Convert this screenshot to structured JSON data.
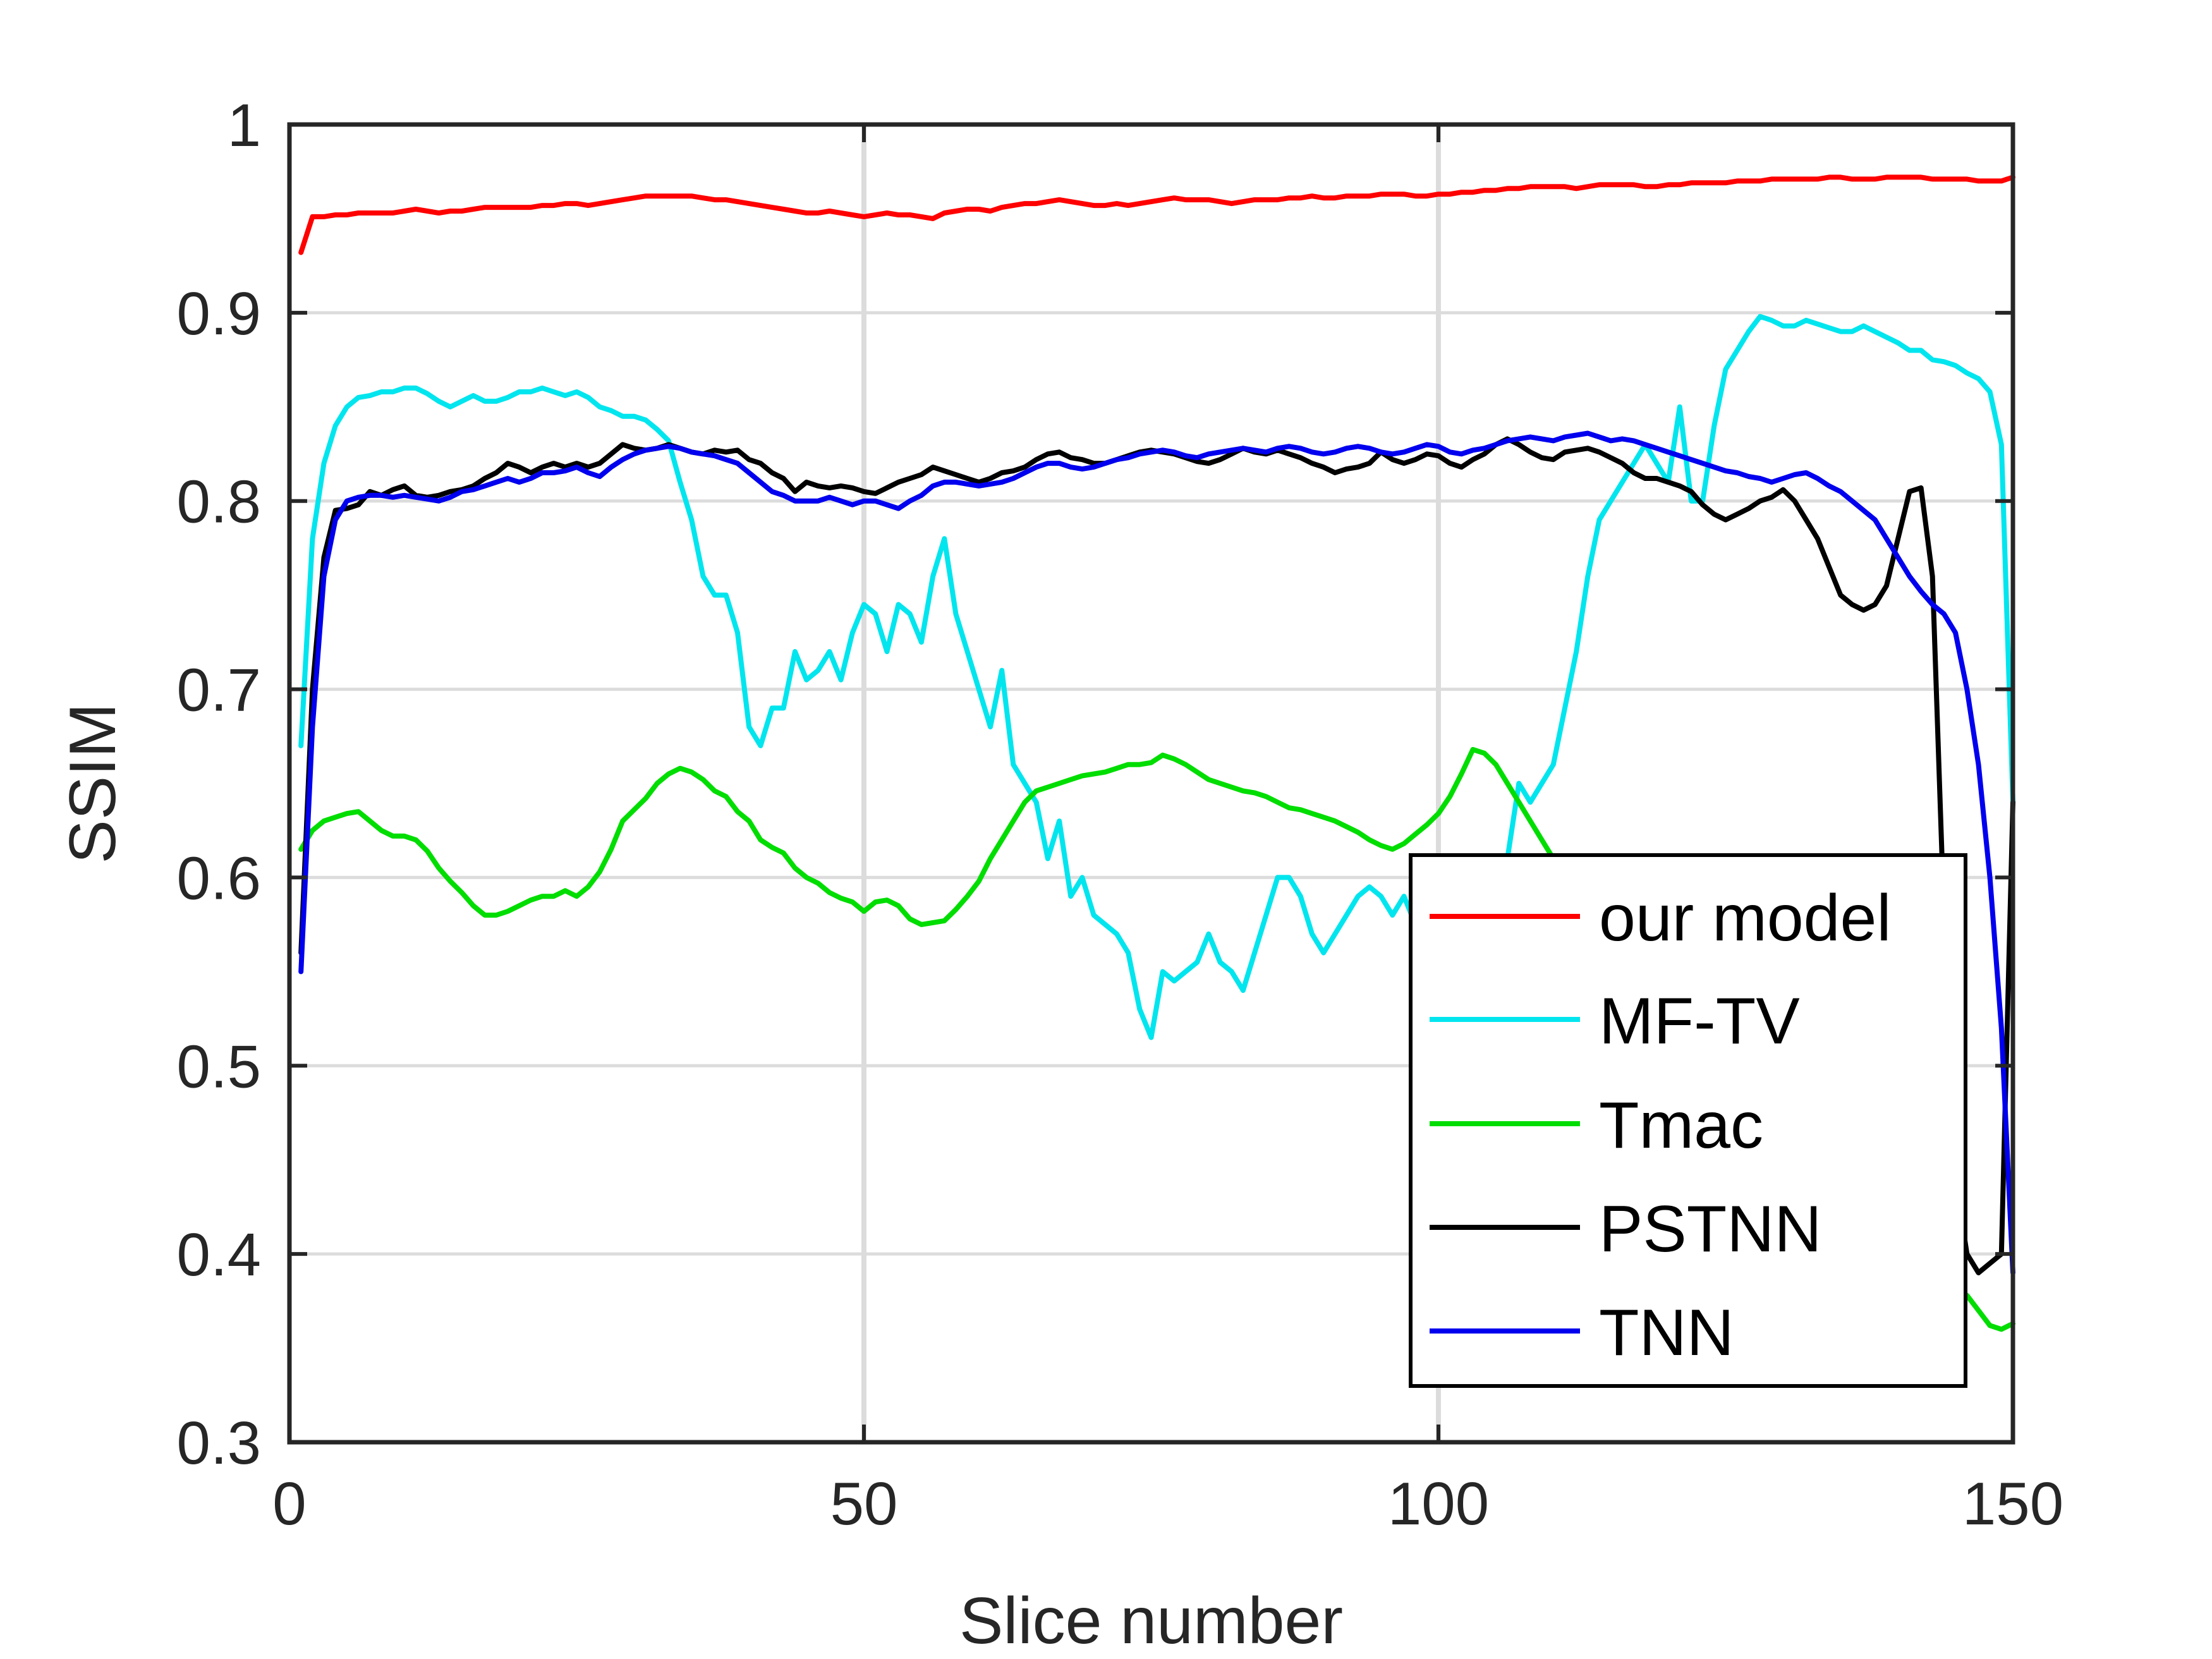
{
  "chart_data": {
    "type": "line",
    "title": "",
    "xlabel": "Slice number",
    "ylabel": "SSIM",
    "xlim": [
      0,
      150
    ],
    "ylim": [
      0.3,
      1.0
    ],
    "xticks": [
      0,
      50,
      100,
      150
    ],
    "xtick_labels": [
      "0",
      "50",
      "100",
      "150"
    ],
    "yticks": [
      0.3,
      0.4,
      0.5,
      0.6,
      0.7,
      0.8,
      0.9,
      1.0
    ],
    "ytick_labels": [
      "0.3",
      "0.4",
      "0.5",
      "0.6",
      "0.7",
      "0.8",
      "0.9",
      "1"
    ],
    "grid": true,
    "legend_position": "bottom-right",
    "x": [
      1,
      2,
      3,
      4,
      5,
      6,
      7,
      8,
      9,
      10,
      11,
      12,
      13,
      14,
      15,
      16,
      17,
      18,
      19,
      20,
      21,
      22,
      23,
      24,
      25,
      26,
      27,
      28,
      29,
      30,
      31,
      32,
      33,
      34,
      35,
      36,
      37,
      38,
      39,
      40,
      41,
      42,
      43,
      44,
      45,
      46,
      47,
      48,
      49,
      50,
      51,
      52,
      53,
      54,
      55,
      56,
      57,
      58,
      59,
      60,
      61,
      62,
      63,
      64,
      65,
      66,
      67,
      68,
      69,
      70,
      71,
      72,
      73,
      74,
      75,
      76,
      77,
      78,
      79,
      80,
      81,
      82,
      83,
      84,
      85,
      86,
      87,
      88,
      89,
      90,
      91,
      92,
      93,
      94,
      95,
      96,
      97,
      98,
      99,
      100,
      101,
      102,
      103,
      104,
      105,
      106,
      107,
      108,
      109,
      110,
      111,
      112,
      113,
      114,
      115,
      116,
      117,
      118,
      119,
      120,
      121,
      122,
      123,
      124,
      125,
      126,
      127,
      128,
      129,
      130,
      131,
      132,
      133,
      134,
      135,
      136,
      137,
      138,
      139,
      140,
      141,
      142,
      143,
      144,
      145,
      146,
      147,
      148,
      149,
      150
    ],
    "series": [
      {
        "name": "our model",
        "color": "#ff0000",
        "values": [
          0.932,
          0.951,
          0.951,
          0.952,
          0.952,
          0.953,
          0.953,
          0.953,
          0.953,
          0.954,
          0.955,
          0.954,
          0.953,
          0.954,
          0.954,
          0.955,
          0.956,
          0.956,
          0.956,
          0.956,
          0.956,
          0.957,
          0.957,
          0.958,
          0.958,
          0.957,
          0.958,
          0.959,
          0.96,
          0.961,
          0.962,
          0.962,
          0.962,
          0.962,
          0.962,
          0.961,
          0.96,
          0.96,
          0.959,
          0.958,
          0.957,
          0.956,
          0.955,
          0.954,
          0.953,
          0.953,
          0.954,
          0.953,
          0.952,
          0.951,
          0.952,
          0.953,
          0.952,
          0.952,
          0.951,
          0.95,
          0.953,
          0.954,
          0.955,
          0.955,
          0.954,
          0.956,
          0.957,
          0.958,
          0.958,
          0.959,
          0.96,
          0.959,
          0.958,
          0.957,
          0.957,
          0.958,
          0.957,
          0.958,
          0.959,
          0.96,
          0.961,
          0.96,
          0.96,
          0.96,
          0.959,
          0.958,
          0.959,
          0.96,
          0.96,
          0.96,
          0.961,
          0.961,
          0.962,
          0.961,
          0.961,
          0.962,
          0.962,
          0.962,
          0.963,
          0.963,
          0.963,
          0.962,
          0.962,
          0.963,
          0.963,
          0.964,
          0.964,
          0.965,
          0.965,
          0.966,
          0.966,
          0.967,
          0.967,
          0.967,
          0.967,
          0.966,
          0.967,
          0.968,
          0.968,
          0.968,
          0.968,
          0.967,
          0.967,
          0.968,
          0.968,
          0.969,
          0.969,
          0.969,
          0.969,
          0.97,
          0.97,
          0.97,
          0.971,
          0.971,
          0.971,
          0.971,
          0.971,
          0.972,
          0.972,
          0.971,
          0.971,
          0.971,
          0.972,
          0.972,
          0.972,
          0.972,
          0.971,
          0.971,
          0.971,
          0.971,
          0.97,
          0.97,
          0.97,
          0.972
        ]
      },
      {
        "name": "MF-TV",
        "color": "#00e5ee",
        "values": [
          0.67,
          0.78,
          0.82,
          0.84,
          0.85,
          0.855,
          0.856,
          0.858,
          0.858,
          0.86,
          0.86,
          0.857,
          0.853,
          0.85,
          0.853,
          0.856,
          0.853,
          0.853,
          0.855,
          0.858,
          0.858,
          0.86,
          0.858,
          0.856,
          0.858,
          0.855,
          0.85,
          0.848,
          0.845,
          0.845,
          0.843,
          0.838,
          0.832,
          0.81,
          0.79,
          0.76,
          0.75,
          0.75,
          0.73,
          0.68,
          0.67,
          0.69,
          0.69,
          0.72,
          0.705,
          0.71,
          0.72,
          0.705,
          0.73,
          0.745,
          0.74,
          0.72,
          0.745,
          0.74,
          0.725,
          0.76,
          0.78,
          0.74,
          0.72,
          0.7,
          0.68,
          0.71,
          0.66,
          0.65,
          0.64,
          0.61,
          0.63,
          0.59,
          0.6,
          0.58,
          0.575,
          0.57,
          0.56,
          0.53,
          0.515,
          0.55,
          0.545,
          0.55,
          0.555,
          0.57,
          0.555,
          0.55,
          0.54,
          0.56,
          0.58,
          0.6,
          0.6,
          0.59,
          0.57,
          0.56,
          0.57,
          0.58,
          0.59,
          0.595,
          0.59,
          0.58,
          0.59,
          0.575,
          0.57,
          0.58,
          0.56,
          0.58,
          0.59,
          0.58,
          0.6,
          0.61,
          0.65,
          0.64,
          0.65,
          0.66,
          0.69,
          0.72,
          0.76,
          0.79,
          0.8,
          0.81,
          0.82,
          0.83,
          0.82,
          0.81,
          0.85,
          0.8,
          0.8,
          0.84,
          0.87,
          0.88,
          0.89,
          0.898,
          0.896,
          0.893,
          0.893,
          0.896,
          0.894,
          0.892,
          0.89,
          0.89,
          0.893,
          0.89,
          0.887,
          0.884,
          0.88,
          0.88,
          0.875,
          0.874,
          0.872,
          0.868,
          0.865,
          0.858,
          0.83,
          0.64
        ]
      },
      {
        "name": "Tmac",
        "color": "#00dd00",
        "values": [
          0.615,
          0.625,
          0.63,
          0.632,
          0.634,
          0.635,
          0.63,
          0.625,
          0.622,
          0.622,
          0.62,
          0.614,
          0.605,
          0.598,
          0.592,
          0.585,
          0.58,
          0.58,
          0.582,
          0.585,
          0.588,
          0.59,
          0.59,
          0.593,
          0.59,
          0.595,
          0.603,
          0.615,
          0.63,
          0.636,
          0.642,
          0.65,
          0.655,
          0.658,
          0.656,
          0.652,
          0.646,
          0.643,
          0.635,
          0.63,
          0.62,
          0.616,
          0.613,
          0.605,
          0.6,
          0.597,
          0.592,
          0.589,
          0.587,
          0.582,
          0.587,
          0.588,
          0.585,
          0.578,
          0.575,
          0.576,
          0.577,
          0.583,
          0.59,
          0.598,
          0.61,
          0.62,
          0.63,
          0.64,
          0.646,
          0.648,
          0.65,
          0.652,
          0.654,
          0.655,
          0.656,
          0.658,
          0.66,
          0.66,
          0.661,
          0.665,
          0.663,
          0.66,
          0.656,
          0.652,
          0.65,
          0.648,
          0.646,
          0.645,
          0.643,
          0.64,
          0.637,
          0.636,
          0.634,
          0.632,
          0.63,
          0.627,
          0.624,
          0.62,
          0.617,
          0.615,
          0.618,
          0.623,
          0.628,
          0.634,
          0.643,
          0.655,
          0.668,
          0.666,
          0.66,
          0.65,
          0.64,
          0.63,
          0.62,
          0.61,
          0.6,
          0.59,
          0.58,
          0.57,
          0.56,
          0.55,
          0.54,
          0.53,
          0.52,
          0.51,
          0.5,
          0.49,
          0.48,
          0.47,
          0.46,
          0.455,
          0.45,
          0.445,
          0.44,
          0.435,
          0.43,
          0.425,
          0.42,
          0.415,
          0.41,
          0.405,
          0.4,
          0.398,
          0.395,
          0.392,
          0.39,
          0.388,
          0.386,
          0.384,
          0.382,
          0.378,
          0.37,
          0.362,
          0.36,
          0.363
        ]
      },
      {
        "name": "PSTNN",
        "color": "#000000",
        "values": [
          0.56,
          0.7,
          0.77,
          0.795,
          0.796,
          0.798,
          0.805,
          0.803,
          0.806,
          0.808,
          0.803,
          0.802,
          0.803,
          0.805,
          0.806,
          0.808,
          0.812,
          0.815,
          0.82,
          0.818,
          0.815,
          0.818,
          0.82,
          0.818,
          0.82,
          0.818,
          0.82,
          0.825,
          0.83,
          0.828,
          0.827,
          0.828,
          0.83,
          0.828,
          0.826,
          0.825,
          0.827,
          0.826,
          0.827,
          0.822,
          0.82,
          0.815,
          0.812,
          0.805,
          0.81,
          0.808,
          0.807,
          0.808,
          0.807,
          0.805,
          0.804,
          0.807,
          0.81,
          0.812,
          0.814,
          0.818,
          0.816,
          0.814,
          0.812,
          0.81,
          0.812,
          0.815,
          0.816,
          0.818,
          0.822,
          0.825,
          0.826,
          0.823,
          0.822,
          0.82,
          0.82,
          0.822,
          0.824,
          0.826,
          0.827,
          0.826,
          0.825,
          0.823,
          0.821,
          0.82,
          0.822,
          0.825,
          0.828,
          0.826,
          0.825,
          0.827,
          0.825,
          0.823,
          0.82,
          0.818,
          0.815,
          0.817,
          0.818,
          0.82,
          0.826,
          0.822,
          0.82,
          0.822,
          0.825,
          0.824,
          0.82,
          0.818,
          0.822,
          0.825,
          0.83,
          0.833,
          0.83,
          0.826,
          0.823,
          0.822,
          0.826,
          0.827,
          0.828,
          0.826,
          0.823,
          0.82,
          0.815,
          0.812,
          0.812,
          0.81,
          0.808,
          0.805,
          0.798,
          0.793,
          0.79,
          0.793,
          0.796,
          0.8,
          0.802,
          0.806,
          0.8,
          0.79,
          0.78,
          0.765,
          0.75,
          0.745,
          0.742,
          0.745,
          0.755,
          0.78,
          0.805,
          0.807,
          0.76,
          0.58,
          0.44,
          0.4,
          0.39,
          0.395,
          0.4,
          0.64
        ]
      },
      {
        "name": "TNN",
        "color": "#0000ee",
        "values": [
          0.55,
          0.68,
          0.76,
          0.79,
          0.8,
          0.802,
          0.803,
          0.803,
          0.802,
          0.803,
          0.802,
          0.801,
          0.8,
          0.802,
          0.805,
          0.806,
          0.808,
          0.81,
          0.812,
          0.81,
          0.812,
          0.815,
          0.815,
          0.816,
          0.818,
          0.815,
          0.813,
          0.818,
          0.822,
          0.825,
          0.827,
          0.828,
          0.829,
          0.828,
          0.826,
          0.825,
          0.824,
          0.822,
          0.82,
          0.815,
          0.81,
          0.805,
          0.803,
          0.8,
          0.8,
          0.8,
          0.802,
          0.8,
          0.798,
          0.8,
          0.8,
          0.798,
          0.796,
          0.8,
          0.803,
          0.808,
          0.81,
          0.81,
          0.809,
          0.808,
          0.809,
          0.81,
          0.812,
          0.815,
          0.818,
          0.82,
          0.82,
          0.818,
          0.817,
          0.818,
          0.82,
          0.822,
          0.823,
          0.825,
          0.826,
          0.827,
          0.826,
          0.824,
          0.823,
          0.825,
          0.826,
          0.827,
          0.828,
          0.827,
          0.826,
          0.828,
          0.829,
          0.828,
          0.826,
          0.825,
          0.826,
          0.828,
          0.829,
          0.828,
          0.826,
          0.825,
          0.826,
          0.828,
          0.83,
          0.829,
          0.826,
          0.825,
          0.827,
          0.828,
          0.83,
          0.832,
          0.833,
          0.834,
          0.833,
          0.832,
          0.834,
          0.835,
          0.836,
          0.834,
          0.832,
          0.833,
          0.832,
          0.83,
          0.828,
          0.826,
          0.824,
          0.822,
          0.82,
          0.818,
          0.816,
          0.815,
          0.813,
          0.812,
          0.81,
          0.812,
          0.814,
          0.815,
          0.812,
          0.808,
          0.805,
          0.8,
          0.795,
          0.79,
          0.78,
          0.77,
          0.76,
          0.752,
          0.745,
          0.74,
          0.73,
          0.7,
          0.66,
          0.6,
          0.52,
          0.39
        ]
      }
    ]
  }
}
